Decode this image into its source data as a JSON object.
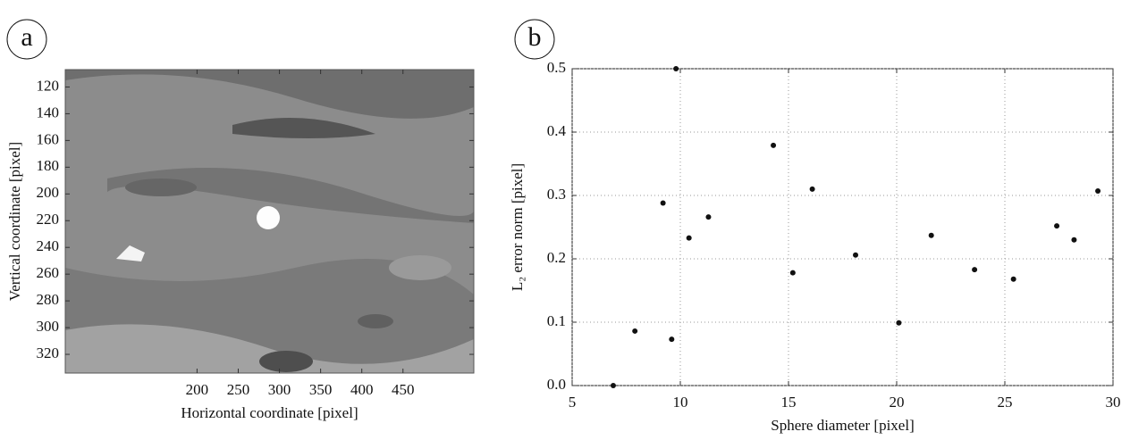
{
  "chart_data": [
    {
      "type": "image",
      "panel": "a",
      "xlabel": "Horizontal coordinate [pixel]",
      "ylabel": "Vertical coordinate [pixel]",
      "xlim": [
        40,
        536
      ],
      "xticks": [
        200,
        250,
        300,
        350,
        400,
        450
      ],
      "ylim": [
        334,
        107
      ],
      "yticks": [
        120,
        140,
        160,
        180,
        200,
        220,
        240,
        260,
        280,
        300,
        320
      ]
    },
    {
      "type": "scatter",
      "panel": "b",
      "xlabel": "Sphere diameter [pixel]",
      "ylabel": "L₂ error norm [pixel]",
      "color": "#111111",
      "grid": true,
      "xlim": [
        5,
        30
      ],
      "xticks": [
        5,
        10,
        15,
        20,
        25,
        30
      ],
      "ylim": [
        0,
        0.5
      ],
      "yticks": [
        {
          "value": 0,
          "label": "0.0"
        },
        0.1,
        0.2,
        0.3,
        0.4,
        0.5
      ],
      "x": [
        6.9,
        7.9,
        9.2,
        9.6,
        9.8,
        10.4,
        11.3,
        14.3,
        15.2,
        16.1,
        18.1,
        20.1,
        21.6,
        23.6,
        25.4,
        27.4,
        28.2,
        29.3
      ],
      "values": [
        0.0,
        0.086,
        0.288,
        0.073,
        0.5,
        0.233,
        0.266,
        0.379,
        0.178,
        0.31,
        0.206,
        0.099,
        0.237,
        0.183,
        0.168,
        0.252,
        0.23,
        0.307
      ]
    }
  ]
}
